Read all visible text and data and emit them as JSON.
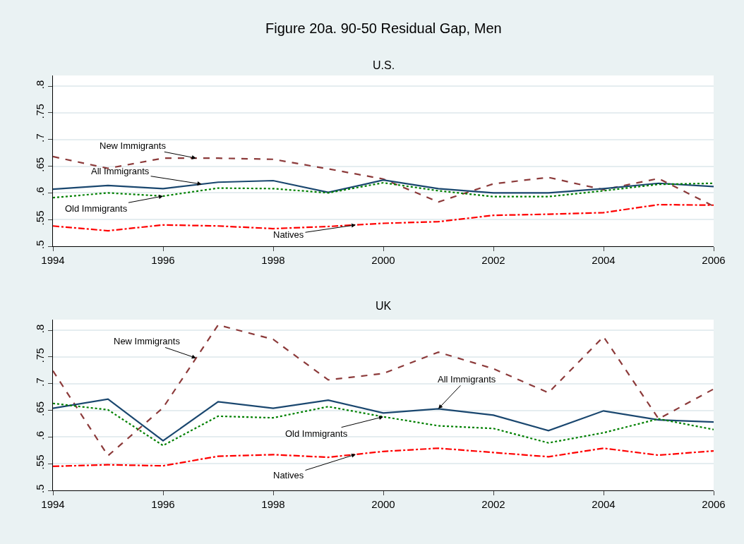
{
  "chart_data": [
    {
      "type": "line",
      "title": "Figure 20a. 90-50 Residual Gap, Men",
      "subtitle": "U.S.",
      "x": [
        1994,
        1995,
        1996,
        1997,
        1998,
        1999,
        2000,
        2001,
        2002,
        2003,
        2004,
        2005,
        2006
      ],
      "series": [
        {
          "name": "New Immigrants",
          "color": "#8c3a3a",
          "line_style": "dashed",
          "values": [
            0.668,
            0.646,
            0.665,
            0.665,
            0.663,
            0.645,
            0.626,
            0.583,
            0.617,
            0.629,
            0.606,
            0.627,
            0.575
          ]
        },
        {
          "name": "All Immigrants",
          "color": "#1a476f",
          "line_style": "solid",
          "values": [
            0.607,
            0.614,
            0.608,
            0.62,
            0.623,
            0.601,
            0.624,
            0.608,
            0.6,
            0.6,
            0.608,
            0.618,
            0.612
          ]
        },
        {
          "name": "Old Immigrants",
          "color": "#008000",
          "line_style": "dotted",
          "values": [
            0.591,
            0.6,
            0.594,
            0.609,
            0.608,
            0.6,
            0.619,
            0.604,
            0.593,
            0.593,
            0.604,
            0.616,
            0.618
          ]
        },
        {
          "name": "Natives",
          "color": "#ff0000",
          "line_style": "dashdot",
          "values": [
            0.538,
            0.529,
            0.54,
            0.538,
            0.533,
            0.537,
            0.543,
            0.546,
            0.558,
            0.56,
            0.563,
            0.578,
            0.577
          ]
        }
      ],
      "xlim": [
        1994,
        2006
      ],
      "xticks": [
        1994,
        1996,
        1998,
        2000,
        2002,
        2004,
        2006
      ],
      "ylim": [
        0.5,
        0.82
      ],
      "yticks": [
        {
          "value": 0.5,
          "label": ".5"
        },
        {
          "value": 0.55,
          "label": ".55"
        },
        {
          "value": 0.6,
          "label": ".6"
        },
        {
          "value": 0.65,
          "label": ".65"
        },
        {
          "value": 0.7,
          "label": ".7"
        },
        {
          "value": 0.75,
          "label": ".75"
        },
        {
          "value": 0.8,
          "label": ".8"
        }
      ],
      "grid": "y",
      "legend": false
    },
    {
      "type": "line",
      "title": "UK",
      "x": [
        1994,
        1995,
        1996,
        1997,
        1998,
        1999,
        2000,
        2001,
        2002,
        2003,
        2004,
        2005,
        2006
      ],
      "series": [
        {
          "name": "New Immigrants",
          "color": "#8c3a3a",
          "line_style": "dashed",
          "values": [
            0.724,
            0.565,
            0.655,
            0.81,
            0.783,
            0.707,
            0.719,
            0.759,
            0.728,
            0.683,
            0.788,
            0.634,
            0.69
          ]
        },
        {
          "name": "All Immigrants",
          "color": "#1a476f",
          "line_style": "solid",
          "values": [
            0.654,
            0.671,
            0.593,
            0.666,
            0.654,
            0.669,
            0.645,
            0.653,
            0.641,
            0.612,
            0.649,
            0.632,
            0.628
          ]
        },
        {
          "name": "Old Immigrants",
          "color": "#008000",
          "line_style": "dotted",
          "values": [
            0.663,
            0.651,
            0.584,
            0.639,
            0.636,
            0.657,
            0.638,
            0.621,
            0.616,
            0.589,
            0.608,
            0.634,
            0.614
          ]
        },
        {
          "name": "Natives",
          "color": "#ff0000",
          "line_style": "dashdot",
          "values": [
            0.545,
            0.548,
            0.546,
            0.564,
            0.567,
            0.562,
            0.573,
            0.579,
            0.571,
            0.563,
            0.579,
            0.566,
            0.574
          ]
        }
      ],
      "xlim": [
        1994,
        2006
      ],
      "xticks": [
        1994,
        1996,
        1998,
        2000,
        2002,
        2004,
        2006
      ],
      "ylim": [
        0.5,
        0.82
      ],
      "yticks": [
        {
          "value": 0.5,
          "label": ".5"
        },
        {
          "value": 0.55,
          "label": ".55"
        },
        {
          "value": 0.6,
          "label": ".6"
        },
        {
          "value": 0.65,
          "label": ".65"
        },
        {
          "value": 0.7,
          "label": ".7"
        },
        {
          "value": 0.75,
          "label": ".75"
        },
        {
          "value": 0.8,
          "label": ".8"
        }
      ],
      "grid": "y",
      "legend": false
    }
  ]
}
